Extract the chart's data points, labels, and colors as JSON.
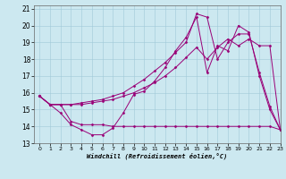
{
  "xlabel": "Windchill (Refroidissement éolien,°C)",
  "xlim": [
    -0.5,
    23
  ],
  "ylim": [
    13,
    21.2
  ],
  "yticks": [
    13,
    14,
    15,
    16,
    17,
    18,
    19,
    20,
    21
  ],
  "xticks": [
    0,
    1,
    2,
    3,
    4,
    5,
    6,
    7,
    8,
    9,
    10,
    11,
    12,
    13,
    14,
    15,
    16,
    17,
    18,
    19,
    20,
    21,
    22,
    23
  ],
  "background_color": "#cce8f0",
  "line_color": "#990077",
  "series": [
    [
      15.8,
      15.3,
      14.8,
      14.1,
      13.8,
      13.5,
      13.5,
      13.9,
      14.8,
      15.9,
      16.1,
      16.7,
      17.5,
      18.5,
      19.3,
      20.5,
      17.2,
      18.8,
      18.5,
      20.0,
      19.6,
      17.0,
      15.0,
      13.8
    ],
    [
      15.8,
      15.3,
      15.3,
      14.3,
      14.1,
      14.1,
      14.1,
      14.0,
      14.0,
      14.0,
      14.0,
      14.0,
      14.0,
      14.0,
      14.0,
      14.0,
      14.0,
      14.0,
      14.0,
      14.0,
      14.0,
      14.0,
      14.0,
      13.8
    ],
    [
      15.8,
      15.3,
      15.3,
      15.3,
      15.3,
      15.4,
      15.5,
      15.6,
      15.8,
      16.0,
      16.3,
      16.6,
      17.0,
      17.5,
      18.1,
      18.7,
      18.0,
      18.7,
      19.2,
      18.8,
      19.2,
      18.8,
      18.8,
      13.8
    ],
    [
      15.8,
      15.3,
      15.3,
      15.3,
      15.4,
      15.5,
      15.6,
      15.8,
      16.0,
      16.4,
      16.8,
      17.3,
      17.8,
      18.4,
      19.0,
      20.7,
      20.5,
      18.0,
      19.0,
      19.5,
      19.5,
      17.2,
      15.2,
      13.8
    ]
  ]
}
